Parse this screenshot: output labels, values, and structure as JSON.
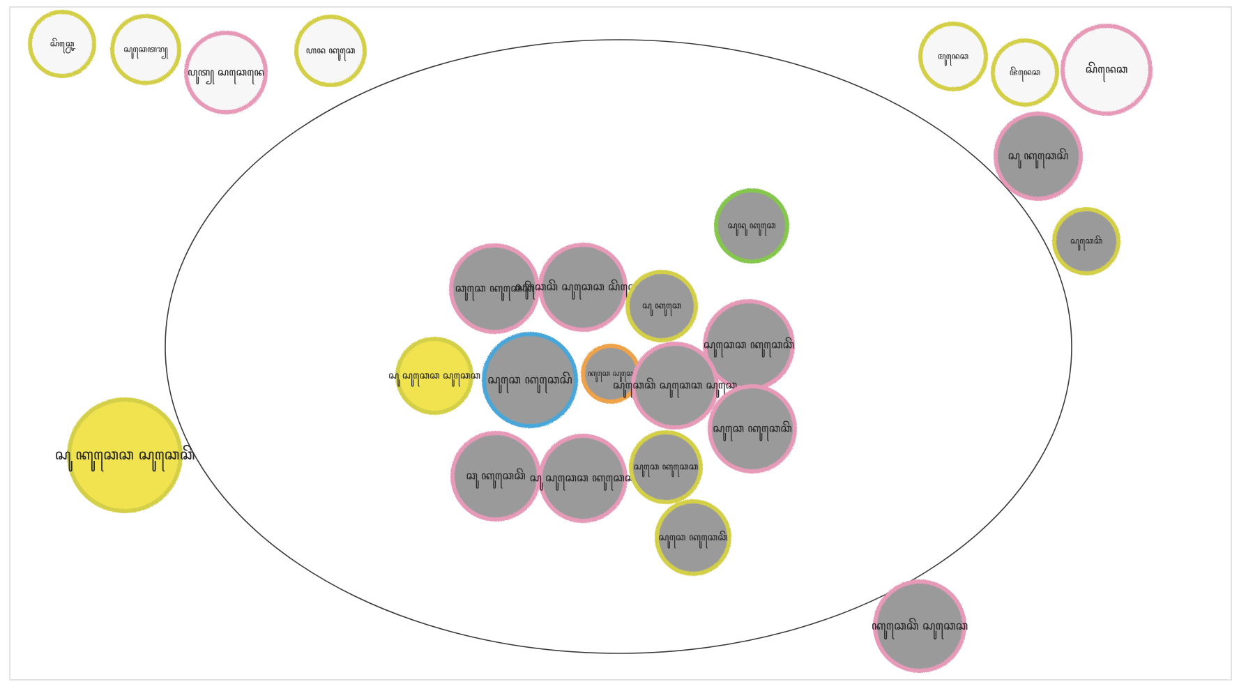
{
  "colors": {
    "paper": "#ffffff",
    "frame": "#cfcfcf",
    "ellipse": "#3a3a3a",
    "disc_fill": "#9a9a9a",
    "pink": "#e79ab7",
    "yellow": "#d4cf4a",
    "yellow_fill": "#f0e34f",
    "green": "#85c64d",
    "blue": "#4aa6d8",
    "orange": "#eea24a",
    "white_fill": "#f7f7f7"
  },
  "diagram": {
    "description_words": [],
    "circles": [
      {
        "id": "c01",
        "ring": "yellow",
        "fill": "white",
        "label": "ꦱꦼꦕ꧀ꦕꦺ"
      },
      {
        "id": "c02",
        "ring": "yellow",
        "fill": "white",
        "label": "ꦱꦸꦕꦺꦠꦫ꧀"
      },
      {
        "id": "c03",
        "ring": "pink",
        "fill": "white",
        "label": "ꦥꦸꦠ꧀ ꦱꦕꦺꦤꦺ"
      },
      {
        "id": "c04",
        "ring": "yellow",
        "fill": "white",
        "label": "ꦲꦤ ꦏꦸꦕꦺ"
      },
      {
        "id": "c05",
        "ring": "yellow",
        "fill": "white",
        "label": "ꦩꦸꦤꦺꦕ"
      },
      {
        "id": "c06",
        "ring": "yellow",
        "fill": "white",
        "label": "ꦗꦼꦤꦺꦕ"
      },
      {
        "id": "c07",
        "ring": "pink",
        "fill": "white",
        "label": "ꦱꦼꦤꦺꦕ"
      },
      {
        "id": "c08",
        "ring": "pink",
        "fill": "grey",
        "label": "ꦱꦸ ꦏꦸꦕꦺꦱꦼ"
      },
      {
        "id": "c09",
        "ring": "yellow",
        "fill": "grey",
        "label": "ꦱꦸꦕꦺꦕꦼ"
      },
      {
        "id": "c10",
        "ring": "green",
        "fill": "grey",
        "label": "ꦱꦸꦤꦸ ꦏꦸꦕꦺ"
      },
      {
        "id": "c11",
        "ring": "pink",
        "fill": "grey",
        "label": "ꦕꦸꦕꦺ ꦏꦸꦕꦺꦕꦼ"
      },
      {
        "id": "c12",
        "ring": "pink",
        "fill": "grey",
        "label": "ꦱꦸꦕꦺꦕꦼ ꦱꦸꦕꦺꦕ ꦱꦼꦕꦺꦕ"
      },
      {
        "id": "c13",
        "ring": "yellow",
        "fill": "grey",
        "label": "ꦱꦸ ꦏꦸꦕꦺ"
      },
      {
        "id": "c14",
        "ring": "pink",
        "fill": "grey",
        "label": "ꦱꦸꦕꦺꦕ ꦏꦸꦕꦺꦕꦼ"
      },
      {
        "id": "c15",
        "ring": "yellow",
        "fill": "yellow",
        "label": "ꦱꦸ ꦱꦸꦕꦺꦕ ꦱꦸꦕꦺꦕ"
      },
      {
        "id": "c16",
        "ring": "blue",
        "fill": "grey",
        "label": "ꦱꦸꦕꦺ ꦏꦸꦕꦺꦱꦼ"
      },
      {
        "id": "c17",
        "ring": "orange",
        "fill": "grey",
        "label": "ꦏꦸꦕꦺ ꦱꦸꦕꦺ"
      },
      {
        "id": "c18",
        "ring": "pink",
        "fill": "grey",
        "label": "ꦱꦸꦕꦺꦕꦼ ꦱꦸꦕꦺꦕ ꦱꦸꦕꦺ"
      },
      {
        "id": "c19",
        "ring": "pink",
        "fill": "grey",
        "label": "ꦱꦸꦕꦺ ꦏꦸꦕꦺꦕꦼ"
      },
      {
        "id": "c20",
        "ring": "pink",
        "fill": "grey",
        "label": "ꦕꦸ ꦏꦸꦕꦺꦕꦼ"
      },
      {
        "id": "c21",
        "ring": "pink",
        "fill": "grey",
        "label": "ꦱꦸ ꦱꦸꦕꦺꦕ ꦏꦸꦕꦺꦕ"
      },
      {
        "id": "c22",
        "ring": "yellow",
        "fill": "grey",
        "label": "ꦱꦸꦕꦺ ꦏꦸꦕꦺꦕ"
      },
      {
        "id": "c23",
        "ring": "pink",
        "fill": "grey",
        "label": "ꦱꦸ ꦏꦸꦕꦺꦕ ꦏꦸꦕꦺꦕꦼ"
      },
      {
        "id": "c24",
        "ring": "yellow",
        "fill": "grey",
        "label": "ꦱꦸꦕꦺ ꦏꦸꦕꦺꦕꦼ"
      },
      {
        "id": "c25",
        "ring": "yellow",
        "fill": "yellow",
        "label": "ꦱꦸ ꦏꦸꦕꦺꦕ ꦱꦸꦕꦺꦕꦼ"
      },
      {
        "id": "c26",
        "ring": "pink",
        "fill": "grey",
        "label": "ꦏꦸꦕꦺꦕꦼ ꦱꦸꦕꦺꦕ"
      }
    ]
  }
}
